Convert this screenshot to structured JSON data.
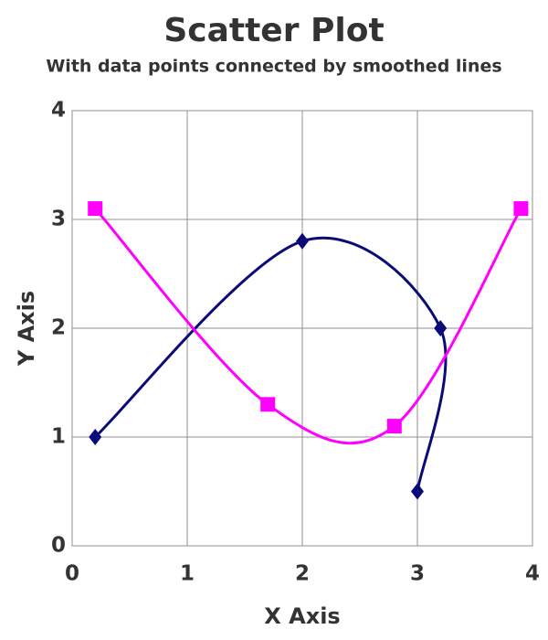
{
  "chart_data": {
    "type": "scatter",
    "title": "Scatter Plot",
    "subtitle": "With data points connected by smoothed lines",
    "x_label": "X Axis",
    "y_label": "Y Axis",
    "smooth": true,
    "grid": true,
    "xlim": [
      0,
      4
    ],
    "ylim": [
      0,
      4
    ],
    "xticks": [
      0,
      1,
      2,
      3,
      4
    ],
    "yticks": [
      0,
      1,
      2,
      3,
      4
    ],
    "series": [
      {
        "color": "#0a0a78",
        "marker": "diamond",
        "x": [
          0.2,
          2,
          3.2,
          3
        ],
        "values": [
          1,
          2.8,
          2,
          0.5
        ]
      },
      {
        "color": "#ff00ff",
        "marker": "square",
        "x": [
          0.2,
          1.7,
          2.8,
          3.9
        ],
        "values": [
          3.1,
          1.3,
          1.1,
          3.1
        ]
      }
    ]
  }
}
